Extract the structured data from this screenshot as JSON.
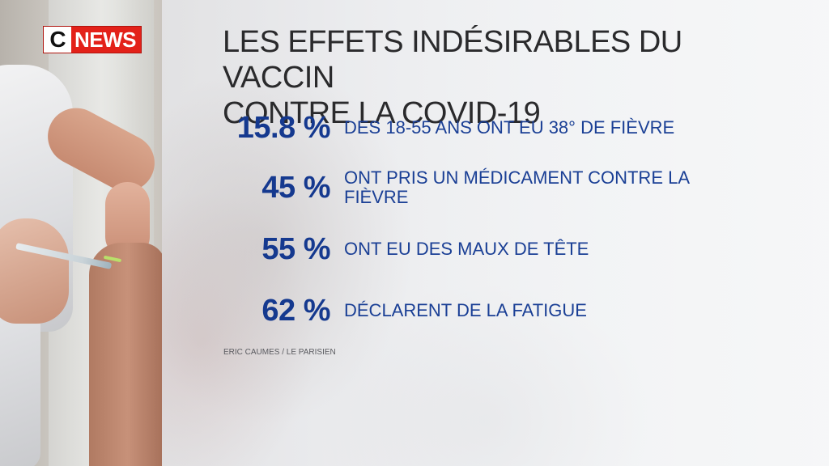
{
  "logo": {
    "letter": "C",
    "word": "NEWS",
    "colors": {
      "red": "#e32119",
      "white": "#ffffff"
    }
  },
  "headline": {
    "line1": "LES EFFETS INDÉSIRABLES DU VACCIN",
    "line2": "CONTRE LA COVID-19"
  },
  "stats": [
    {
      "percent": "15.8 %",
      "text": "DES 18-55 ANS ONT EU 38° DE FIÈVRE"
    },
    {
      "percent": "45 %",
      "text": "ONT PRIS UN MÉDICAMENT CONTRE LA FIÈVRE"
    },
    {
      "percent": "55 %",
      "text": "ONT EU DES MAUX DE TÊTE"
    },
    {
      "percent": "62 %",
      "text": "DÉCLARENT DE LA FATIGUE"
    }
  ],
  "source": "ERIC CAUMES / LE PARISIEN",
  "colors": {
    "accent_blue": "#15398f",
    "headline": "#2a2a2c"
  }
}
